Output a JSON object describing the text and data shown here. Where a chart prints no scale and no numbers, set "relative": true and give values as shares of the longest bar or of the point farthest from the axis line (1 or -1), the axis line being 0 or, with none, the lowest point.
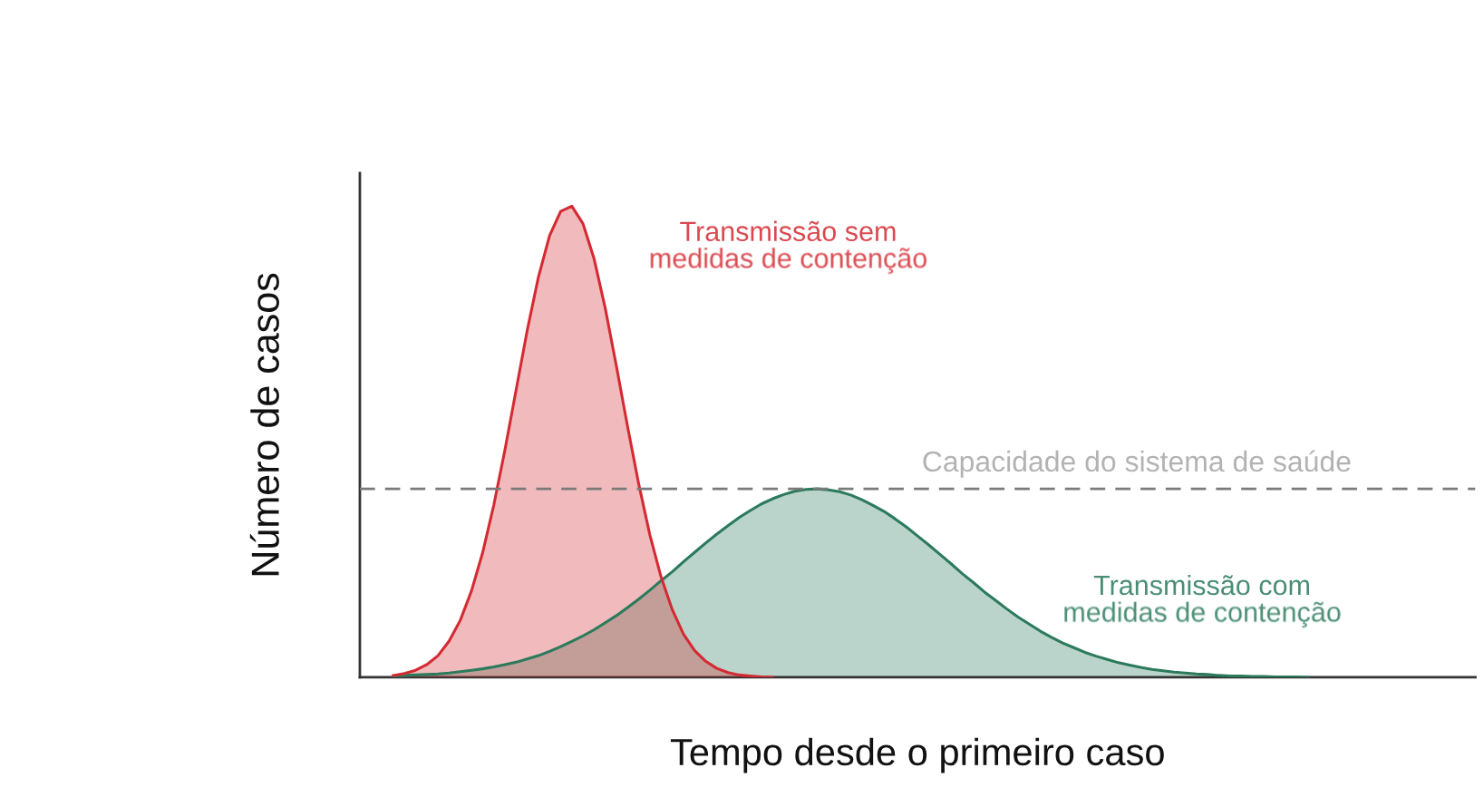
{
  "chart_data": {
    "type": "area",
    "relative": true,
    "tick_labels": false,
    "xlabel": "Tempo desde o primeiro caso",
    "ylabel": "Número de casos",
    "categories": [
      null,
      null,
      null,
      null,
      null,
      null,
      null,
      null,
      null,
      null,
      null,
      null,
      null,
      null,
      null,
      null,
      null,
      null,
      null,
      null,
      null,
      null,
      null,
      null,
      null,
      null,
      null,
      null,
      null,
      null,
      null,
      null,
      null,
      null,
      null,
      null,
      null,
      null,
      null,
      null,
      null,
      null,
      null,
      null,
      null,
      null,
      null,
      null,
      null,
      null,
      null,
      null,
      null,
      null,
      null,
      null,
      null,
      null,
      null,
      null,
      null,
      null,
      null,
      null,
      null,
      null,
      null,
      null,
      null,
      null,
      null,
      null,
      null,
      null,
      null,
      null,
      null,
      null,
      null,
      null,
      null,
      null,
      null,
      null,
      null,
      null,
      null,
      null,
      null,
      null,
      null,
      null,
      null,
      null,
      null,
      null,
      null,
      null,
      null,
      null,
      null
    ],
    "series": [
      {
        "name": "Transmissão sem medidas de contenção",
        "color": "#d42a32",
        "values": [
          null,
          null,
          null,
          0.004,
          0.008,
          0.015,
          0.027,
          0.046,
          0.077,
          0.121,
          0.183,
          0.264,
          0.365,
          0.482,
          0.609,
          0.736,
          0.849,
          0.937,
          0.989,
          1,
          0.963,
          0.888,
          0.783,
          0.66,
          0.532,
          0.41,
          0.302,
          0.213,
          0.144,
          0.092,
          0.057,
          0.034,
          0.019,
          0.01,
          0.005,
          0.003,
          0.001,
          0,
          null,
          null,
          null,
          null,
          null,
          null,
          null,
          null,
          null,
          null,
          null,
          null,
          null,
          null,
          null,
          null,
          null,
          null,
          null,
          null,
          null,
          null,
          null,
          null,
          null,
          null,
          null,
          null,
          null,
          null,
          null,
          null,
          null,
          null,
          null,
          null,
          null,
          null,
          null,
          null,
          null,
          null,
          null,
          null,
          null,
          null,
          null,
          null,
          null,
          null,
          null,
          null,
          null,
          null,
          null,
          null,
          null,
          null,
          null,
          null,
          null,
          null,
          null
        ]
      },
      {
        "name": "Transmissão com medidas de contenção",
        "color": "#2b7a5c",
        "values": [
          null,
          null,
          null,
          0.003,
          0.004,
          0.005,
          0.006,
          0.007,
          0.009,
          0.012,
          0.015,
          0.018,
          0.022,
          0.027,
          0.032,
          0.039,
          0.046,
          0.055,
          0.065,
          0.076,
          0.088,
          0.101,
          0.116,
          0.131,
          0.148,
          0.166,
          0.185,
          0.205,
          0.224,
          0.245,
          0.265,
          0.285,
          0.304,
          0.322,
          0.339,
          0.354,
          0.368,
          0.379,
          0.388,
          0.395,
          0.399,
          0.4,
          0.398,
          0.394,
          0.387,
          0.377,
          0.365,
          0.352,
          0.336,
          0.319,
          0.3,
          0.281,
          0.261,
          0.241,
          0.22,
          0.201,
          0.181,
          0.163,
          0.145,
          0.128,
          0.113,
          0.098,
          0.085,
          0.073,
          0.063,
          0.053,
          0.045,
          0.038,
          0.031,
          0.026,
          0.021,
          0.017,
          0.014,
          0.011,
          0.009,
          0.007,
          0.006,
          0.004,
          0.003,
          0.003,
          0.002,
          0.002,
          0.001,
          0.001,
          0.001,
          0,
          null,
          null,
          null,
          null,
          null,
          null,
          null,
          null,
          null,
          null,
          null,
          null,
          null,
          null,
          null
        ]
      }
    ],
    "ref_lines": [
      {
        "axis": "y",
        "value": 0.4,
        "label": "Capacidade do sistema de saúde",
        "color": "#7a7a7a",
        "line_style": "dashed"
      }
    ]
  }
}
